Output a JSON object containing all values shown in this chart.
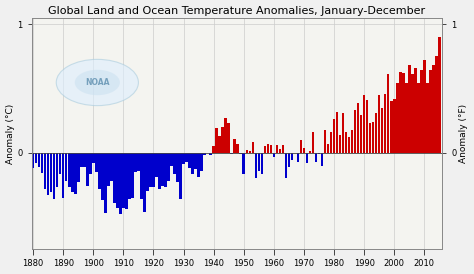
{
  "title": "Global Land and Ocean Temperature Anomalies, January-December",
  "ylabel_left": "Anomaly (°C)",
  "ylabel_right": "Anomaly (°F)",
  "xlim": [
    1879.5,
    2016
  ],
  "ylim_c": [
    -0.75,
    1.05
  ],
  "yticks_left": [
    0,
    1
  ],
  "ytick_labels_left": [
    "0",
    "1"
  ],
  "yticks_right": [
    0,
    1
  ],
  "ytick_labels_right": [
    "0",
    "1"
  ],
  "xticks": [
    1880,
    1890,
    1900,
    1910,
    1920,
    1930,
    1940,
    1950,
    1960,
    1970,
    1980,
    1990,
    2000,
    2010
  ],
  "years": [
    1880,
    1881,
    1882,
    1883,
    1884,
    1885,
    1886,
    1887,
    1888,
    1889,
    1890,
    1891,
    1892,
    1893,
    1894,
    1895,
    1896,
    1897,
    1898,
    1899,
    1900,
    1901,
    1902,
    1903,
    1904,
    1905,
    1906,
    1907,
    1908,
    1909,
    1910,
    1911,
    1912,
    1913,
    1914,
    1915,
    1916,
    1917,
    1918,
    1919,
    1920,
    1921,
    1922,
    1923,
    1924,
    1925,
    1926,
    1927,
    1928,
    1929,
    1930,
    1931,
    1932,
    1933,
    1934,
    1935,
    1936,
    1937,
    1938,
    1939,
    1940,
    1941,
    1942,
    1943,
    1944,
    1945,
    1946,
    1947,
    1948,
    1949,
    1950,
    1951,
    1952,
    1953,
    1954,
    1955,
    1956,
    1957,
    1958,
    1959,
    1960,
    1961,
    1962,
    1963,
    1964,
    1965,
    1966,
    1967,
    1968,
    1969,
    1970,
    1971,
    1972,
    1973,
    1974,
    1975,
    1976,
    1977,
    1978,
    1979,
    1980,
    1981,
    1982,
    1983,
    1984,
    1985,
    1986,
    1987,
    1988,
    1989,
    1990,
    1991,
    1992,
    1993,
    1994,
    1995,
    1996,
    1997,
    1998,
    1999,
    2000,
    2001,
    2002,
    2003,
    2004,
    2005,
    2006,
    2007,
    2008,
    2009,
    2010,
    2011,
    2012,
    2013,
    2014,
    2015
  ],
  "anomalies": [
    -0.12,
    -0.08,
    -0.11,
    -0.16,
    -0.28,
    -0.33,
    -0.31,
    -0.36,
    -0.27,
    -0.17,
    -0.35,
    -0.22,
    -0.27,
    -0.31,
    -0.32,
    -0.23,
    -0.11,
    -0.11,
    -0.26,
    -0.17,
    -0.08,
    -0.15,
    -0.28,
    -0.37,
    -0.47,
    -0.26,
    -0.22,
    -0.39,
    -0.43,
    -0.48,
    -0.43,
    -0.44,
    -0.36,
    -0.35,
    -0.15,
    -0.14,
    -0.36,
    -0.46,
    -0.3,
    -0.27,
    -0.27,
    -0.19,
    -0.28,
    -0.26,
    -0.27,
    -0.22,
    -0.1,
    -0.17,
    -0.23,
    -0.36,
    -0.09,
    -0.07,
    -0.12,
    -0.17,
    -0.13,
    -0.19,
    -0.14,
    -0.02,
    -0.0,
    -0.02,
    0.05,
    0.19,
    0.13,
    0.2,
    0.27,
    0.23,
    -0.01,
    0.11,
    0.07,
    -0.01,
    -0.17,
    0.02,
    0.01,
    0.08,
    -0.2,
    -0.14,
    -0.17,
    0.05,
    0.07,
    0.06,
    -0.03,
    0.06,
    0.03,
    0.06,
    -0.2,
    -0.11,
    -0.06,
    -0.0,
    -0.07,
    0.1,
    0.04,
    -0.08,
    0.01,
    0.16,
    -0.07,
    -0.01,
    -0.1,
    0.18,
    0.07,
    0.16,
    0.26,
    0.32,
    0.14,
    0.31,
    0.16,
    0.12,
    0.18,
    0.33,
    0.39,
    0.29,
    0.45,
    0.41,
    0.23,
    0.24,
    0.31,
    0.45,
    0.35,
    0.46,
    0.61,
    0.4,
    0.42,
    0.54,
    0.63,
    0.62,
    0.54,
    0.68,
    0.61,
    0.66,
    0.54,
    0.64,
    0.72,
    0.54,
    0.64,
    0.68,
    0.75,
    0.9
  ],
  "color_positive": "#cc0000",
  "color_negative": "#0000cc",
  "background_color": "#f0f0f0",
  "plot_bg_color": "#f4f4f0",
  "grid_color": "#cccccc",
  "title_fontsize": 8,
  "label_fontsize": 6.5,
  "tick_fontsize": 6
}
